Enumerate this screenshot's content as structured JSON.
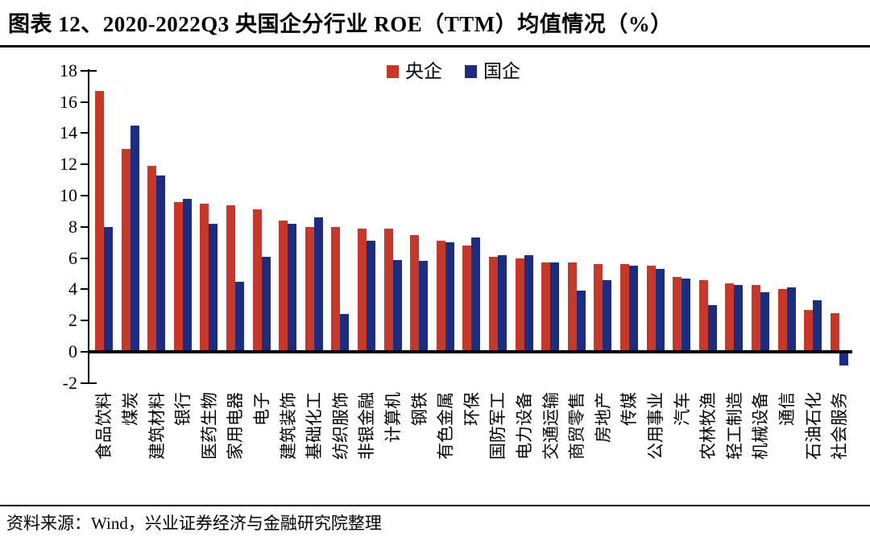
{
  "page": {
    "title": "图表 12、2020-2022Q3 央国企分行业 ROE（TTM）均值情况（%）",
    "source_note": "资料来源：Wind，兴业证券经济与金融研究院整理"
  },
  "chart_data": {
    "type": "bar",
    "title": "2020-2022Q3 央国企分行业 ROE（TTM）均值情况（%）",
    "xlabel": "",
    "ylabel": "",
    "ylim": [
      -2,
      18
    ],
    "ytick_step": 2,
    "grid": false,
    "legend_position": "top-center",
    "categories": [
      "食品饮料",
      "煤炭",
      "建筑材料",
      "银行",
      "医药生物",
      "家用电器",
      "电子",
      "建筑装饰",
      "基础化工",
      "纺织服饰",
      "非银金融",
      "计算机",
      "钢铁",
      "有色金属",
      "环保",
      "国防军工",
      "电力设备",
      "交通运输",
      "商贸零售",
      "房地产",
      "传媒",
      "公用事业",
      "汽车",
      "农林牧渔",
      "轻工制造",
      "机械设备",
      "通信",
      "石油石化",
      "社会服务"
    ],
    "series": [
      {
        "name": "央企",
        "color": "#c5392b",
        "values": [
          16.7,
          13.0,
          11.9,
          9.6,
          9.5,
          9.4,
          9.1,
          8.4,
          8.0,
          8.0,
          7.9,
          7.9,
          7.5,
          7.1,
          6.8,
          6.1,
          6.0,
          5.7,
          5.7,
          5.6,
          5.6,
          5.5,
          4.8,
          4.6,
          4.4,
          4.3,
          4.0,
          2.7,
          2.5
        ]
      },
      {
        "name": "国企",
        "color": "#1c2d80",
        "values": [
          8.0,
          14.5,
          11.3,
          9.8,
          8.2,
          4.5,
          6.1,
          8.2,
          8.6,
          2.4,
          7.1,
          5.9,
          5.8,
          7.0,
          7.3,
          6.2,
          6.2,
          5.7,
          3.9,
          4.6,
          5.5,
          5.3,
          4.7,
          3.0,
          4.3,
          3.8,
          4.1,
          3.3,
          -0.9
        ]
      }
    ]
  }
}
